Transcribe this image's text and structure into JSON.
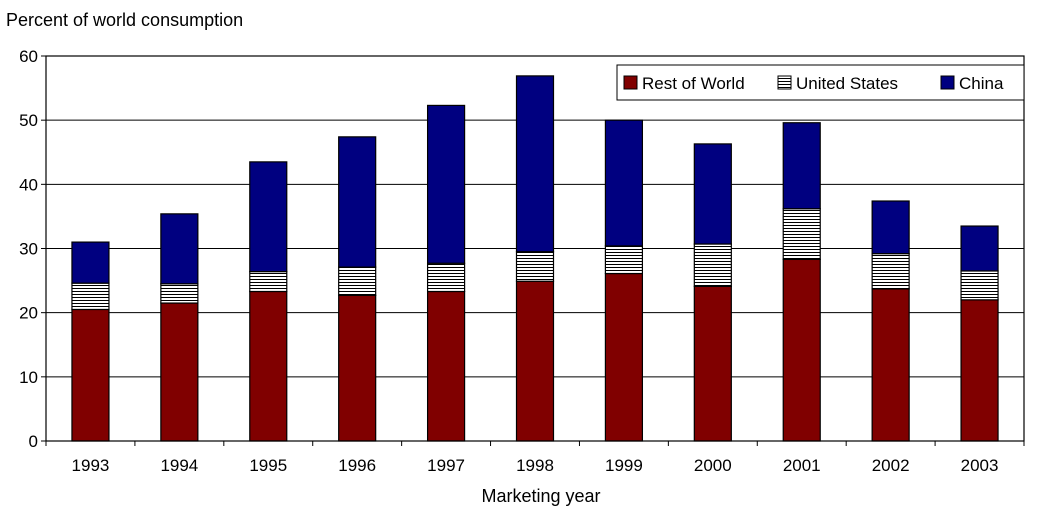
{
  "chart_data": {
    "type": "bar",
    "stacked": true,
    "title": "",
    "ylabel": "Percent of world consumption",
    "xlabel": "Marketing year",
    "ylim": [
      0,
      60
    ],
    "yticks": [
      0,
      10,
      20,
      30,
      40,
      50,
      60
    ],
    "grid": true,
    "legend_position": "top-right",
    "categories": [
      "1993",
      "1994",
      "1995",
      "1996",
      "1997",
      "1998",
      "1999",
      "2000",
      "2001",
      "2002",
      "2003"
    ],
    "series": [
      {
        "name": "Rest of World",
        "color": "#800000",
        "pattern": "solid",
        "values": [
          20.5,
          21.5,
          23.3,
          22.7,
          23.3,
          24.9,
          26.1,
          24.1,
          28.3,
          23.7,
          22.0
        ]
      },
      {
        "name": "United States",
        "color": "#ffffff",
        "pattern": "horizontal-lines",
        "values": [
          4.1,
          3.0,
          3.1,
          4.4,
          4.4,
          4.6,
          4.3,
          6.6,
          7.9,
          5.5,
          4.5
        ]
      },
      {
        "name": "China",
        "color": "#000080",
        "pattern": "solid",
        "values": [
          6.4,
          10.9,
          17.1,
          20.3,
          24.6,
          27.4,
          19.6,
          15.6,
          13.4,
          8.2,
          7.0
        ]
      }
    ]
  }
}
